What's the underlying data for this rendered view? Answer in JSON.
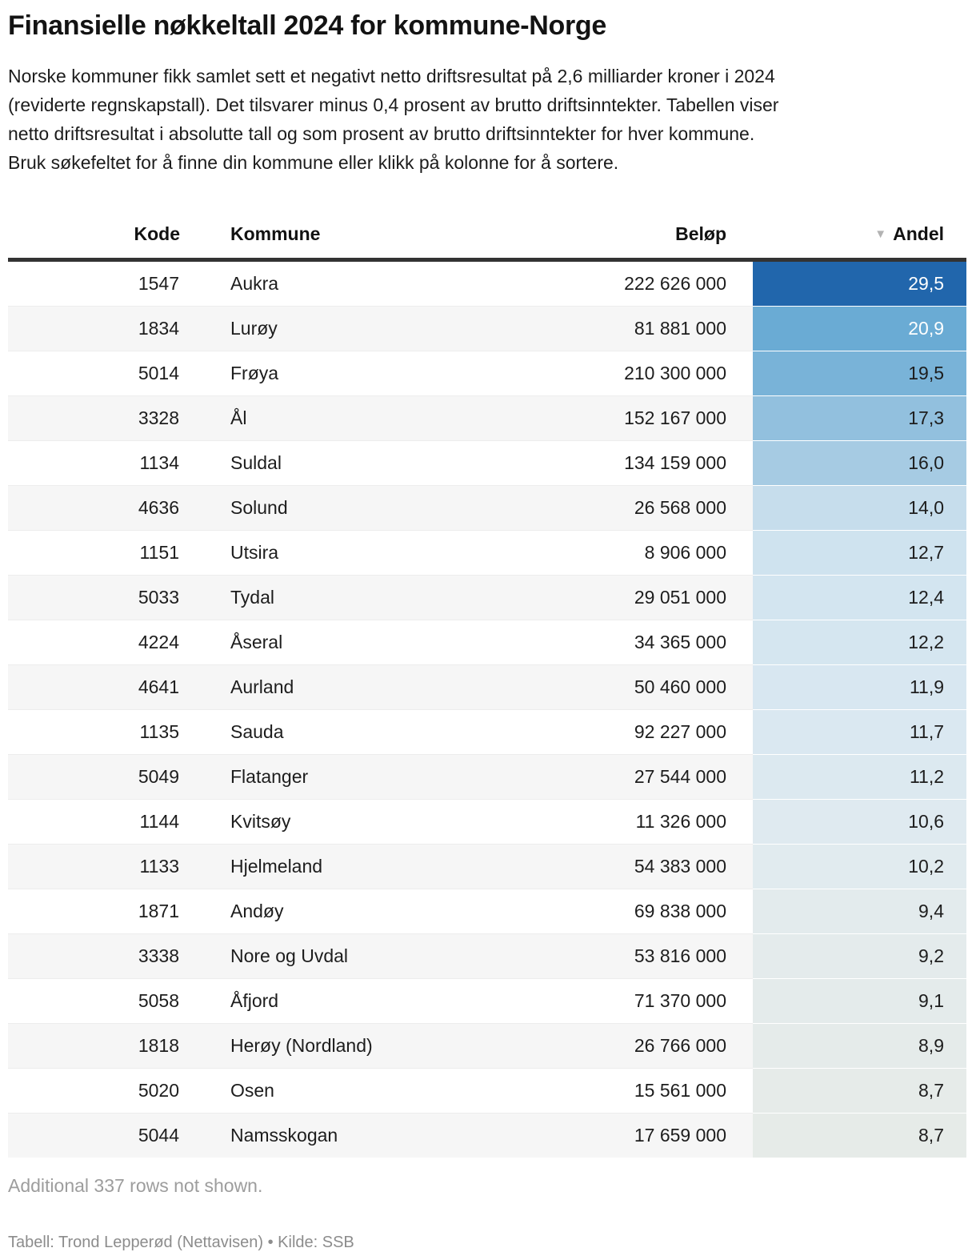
{
  "header": {
    "title": "Finansielle nøkkeltall 2024 for kommune-Norge",
    "description_lines": [
      "Norske kommuner fikk samlet sett et negativt netto driftsresultat på 2,6 milliarder kroner i 2024",
      "(reviderte regnskapstall). Det tilsvarer minus 0,4 prosent av brutto driftsinntekter. Tabellen viser",
      "netto driftsresultat i absolutte tall og som prosent av brutto driftsinntekter for hver kommune.",
      "Bruk søkefeltet for å finne din kommune eller klikk på kolonne for å sortere."
    ]
  },
  "table": {
    "columns": [
      {
        "key": "kode",
        "label": "Kode"
      },
      {
        "key": "kommune",
        "label": "Kommune"
      },
      {
        "key": "belop",
        "label": "Beløp"
      },
      {
        "key": "andel",
        "label": "Andel"
      }
    ],
    "sort_icon": "▼",
    "sorted_column": "Andel",
    "sort_direction": "desc",
    "stripe_color": "#f6f6f6",
    "header_border_color": "#333333",
    "rows": [
      {
        "kode": "1547",
        "kommune": "Aukra",
        "belop": "222 626 000",
        "andel": "29,5",
        "andel_bg": "#2166ac",
        "andel_text": "#ffffff"
      },
      {
        "kode": "1834",
        "kommune": "Lurøy",
        "belop": "81 881 000",
        "andel": "20,9",
        "andel_bg": "#6aabd4",
        "andel_text": "#ffffff"
      },
      {
        "kode": "5014",
        "kommune": "Frøya",
        "belop": "210 300 000",
        "andel": "19,5",
        "andel_bg": "#79b3d8",
        "andel_text": "#1d1d1d"
      },
      {
        "kode": "3328",
        "kommune": "Ål",
        "belop": "152 167 000",
        "andel": "17,3",
        "andel_bg": "#92c0de",
        "andel_text": "#1d1d1d"
      },
      {
        "kode": "1134",
        "kommune": "Suldal",
        "belop": "134 159 000",
        "andel": "16,0",
        "andel_bg": "#a6cbe3",
        "andel_text": "#1d1d1d"
      },
      {
        "kode": "4636",
        "kommune": "Solund",
        "belop": "26 568 000",
        "andel": "14,0",
        "andel_bg": "#c6ddec",
        "andel_text": "#1d1d1d"
      },
      {
        "kode": "1151",
        "kommune": "Utsira",
        "belop": "8 906 000",
        "andel": "12,7",
        "andel_bg": "#cfe3ef",
        "andel_text": "#1d1d1d"
      },
      {
        "kode": "5033",
        "kommune": "Tydal",
        "belop": "29 051 000",
        "andel": "12,4",
        "andel_bg": "#d3e5f0",
        "andel_text": "#1d1d1d"
      },
      {
        "kode": "4224",
        "kommune": "Åseral",
        "belop": "34 365 000",
        "andel": "12,2",
        "andel_bg": "#d5e6f0",
        "andel_text": "#1d1d1d"
      },
      {
        "kode": "4641",
        "kommune": "Aurland",
        "belop": "50 460 000",
        "andel": "11,9",
        "andel_bg": "#d8e7f1",
        "andel_text": "#1d1d1d"
      },
      {
        "kode": "1135",
        "kommune": "Sauda",
        "belop": "92 227 000",
        "andel": "11,7",
        "andel_bg": "#dae8f1",
        "andel_text": "#1d1d1d"
      },
      {
        "kode": "5049",
        "kommune": "Flatanger",
        "belop": "27 544 000",
        "andel": "11,2",
        "andel_bg": "#dce9f0",
        "andel_text": "#1d1d1d"
      },
      {
        "kode": "1144",
        "kommune": "Kvitsøy",
        "belop": "11 326 000",
        "andel": "10,6",
        "andel_bg": "#dfeaf0",
        "andel_text": "#1d1d1d"
      },
      {
        "kode": "1133",
        "kommune": "Hjelmeland",
        "belop": "54 383 000",
        "andel": "10,2",
        "andel_bg": "#e1ebef",
        "andel_text": "#1d1d1d"
      },
      {
        "kode": "1871",
        "kommune": "Andøy",
        "belop": "69 838 000",
        "andel": "9,4",
        "andel_bg": "#e3ebed",
        "andel_text": "#1d1d1d"
      },
      {
        "kode": "3338",
        "kommune": "Nore og Uvdal",
        "belop": "53 816 000",
        "andel": "9,2",
        "andel_bg": "#e4ebec",
        "andel_text": "#1d1d1d"
      },
      {
        "kode": "5058",
        "kommune": "Åfjord",
        "belop": "71 370 000",
        "andel": "9,1",
        "andel_bg": "#e4ebeb",
        "andel_text": "#1d1d1d"
      },
      {
        "kode": "1818",
        "kommune": "Herøy (Nordland)",
        "belop": "26 766 000",
        "andel": "8,9",
        "andel_bg": "#e5ebea",
        "andel_text": "#1d1d1d"
      },
      {
        "kode": "5020",
        "kommune": "Osen",
        "belop": "15 561 000",
        "andel": "8,7",
        "andel_bg": "#e6ebe9",
        "andel_text": "#1d1d1d"
      },
      {
        "kode": "5044",
        "kommune": "Namsskogan",
        "belop": "17 659 000",
        "andel": "8,7",
        "andel_bg": "#e6ebe8",
        "andel_text": "#1d1d1d"
      }
    ]
  },
  "footer": {
    "more_note": "Additional 337 rows not shown.",
    "credit": "Tabell: Trond Lepperød (Nettavisen) • Kilde: SSB"
  },
  "chart_data": {
    "type": "table",
    "title": "Finansielle nøkkeltall 2024 for kommune-Norge",
    "columns": [
      "Kode",
      "Kommune",
      "Beløp",
      "Andel"
    ],
    "sorted_by": "Andel",
    "sort_direction": "desc",
    "heatmap_column": "Andel",
    "heatmap_max_color": "#2166ac",
    "rows": [
      [
        1547,
        "Aukra",
        222626000,
        29.5
      ],
      [
        1834,
        "Lurøy",
        81881000,
        20.9
      ],
      [
        5014,
        "Frøya",
        210300000,
        19.5
      ],
      [
        3328,
        "Ål",
        152167000,
        17.3
      ],
      [
        1134,
        "Suldal",
        134159000,
        16.0
      ],
      [
        4636,
        "Solund",
        26568000,
        14.0
      ],
      [
        1151,
        "Utsira",
        8906000,
        12.7
      ],
      [
        5033,
        "Tydal",
        29051000,
        12.4
      ],
      [
        4224,
        "Åseral",
        34365000,
        12.2
      ],
      [
        4641,
        "Aurland",
        50460000,
        11.9
      ],
      [
        1135,
        "Sauda",
        92227000,
        11.7
      ],
      [
        5049,
        "Flatanger",
        27544000,
        11.2
      ],
      [
        1144,
        "Kvitsøy",
        11326000,
        10.6
      ],
      [
        1133,
        "Hjelmeland",
        54383000,
        10.2
      ],
      [
        1871,
        "Andøy",
        69838000,
        9.4
      ],
      [
        3338,
        "Nore og Uvdal",
        53816000,
        9.2
      ],
      [
        5058,
        "Åfjord",
        71370000,
        9.1
      ],
      [
        1818,
        "Herøy (Nordland)",
        26766000,
        8.9
      ],
      [
        5020,
        "Osen",
        15561000,
        8.7
      ],
      [
        5044,
        "Namsskogan",
        17659000,
        8.7
      ]
    ],
    "hidden_rows_note": "Additional 337 rows not shown."
  }
}
